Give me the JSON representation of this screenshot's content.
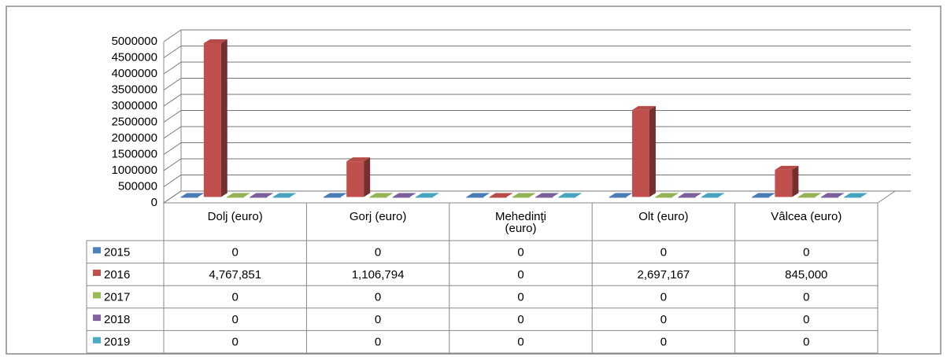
{
  "chart_data": {
    "type": "bar3d",
    "categories": [
      "Dolj (euro)",
      "Gorj (euro)",
      "Mehedinţi (euro)",
      "Olt (euro)",
      "Vâlcea (euro)"
    ],
    "series": [
      {
        "name": "2015",
        "color": "#4f81bd",
        "values": [
          0,
          0,
          0,
          0,
          0
        ]
      },
      {
        "name": "2016",
        "color": "#c0504d",
        "values": [
          4767851,
          1106794,
          0,
          2697167,
          845000
        ],
        "value_labels": [
          "4,767,851",
          "1,106,794",
          "0",
          "2,697,167",
          "845,000"
        ]
      },
      {
        "name": "2017",
        "color": "#9bbb59",
        "values": [
          0,
          0,
          0,
          0,
          0
        ]
      },
      {
        "name": "2018",
        "color": "#8064a2",
        "values": [
          0,
          0,
          0,
          0,
          0
        ]
      },
      {
        "name": "2019",
        "color": "#4bacc6",
        "values": [
          0,
          0,
          0,
          0,
          0
        ]
      }
    ],
    "ylim": [
      0,
      5000000
    ],
    "yticks": [
      0,
      500000,
      1000000,
      1500000,
      2000000,
      2500000,
      3000000,
      3500000,
      4000000,
      4500000,
      5000000
    ],
    "grid": true,
    "legend": "table"
  }
}
